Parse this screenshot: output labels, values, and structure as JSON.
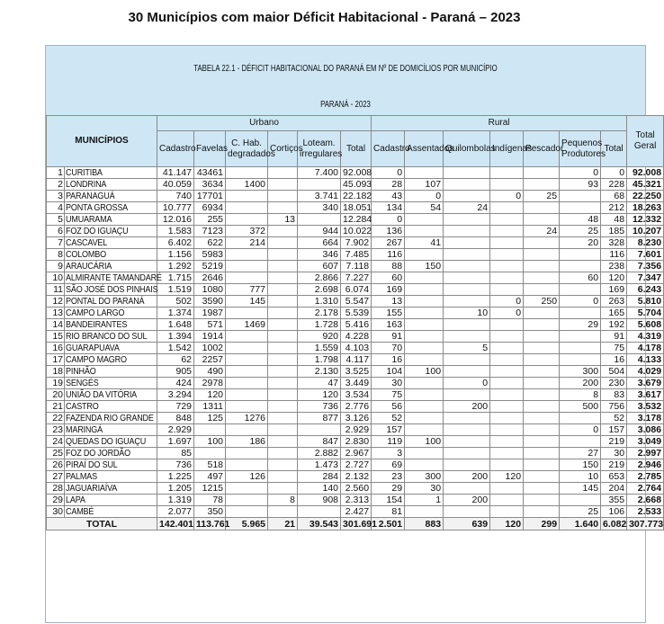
{
  "title": "30 Municípios com maior Déficit Habitacional - Paraná – 2023",
  "table": {
    "caption": "TABELA 22.1 - DÉFICIT HABITACIONAL DO PARANÁ EM Nº DE DOMICÍLIOS POR MUNICÍPIO",
    "subcaption": "PARANÁ - 2023",
    "group_headers": {
      "municipios": "MUNICÍPIOS",
      "urbano": "Urbano",
      "rural": "Rural",
      "total_geral": "Total Geral"
    },
    "columns": [
      "Cadastro",
      "Favelas",
      "C. Hab. degradados",
      "Cortiços",
      "Loteam. irregulares",
      "Total",
      "Cadastro",
      "Assentados",
      "Quilombolas",
      "Indígenas",
      "Pescador",
      "Pequenos Produtores",
      "Total"
    ],
    "rows": [
      [
        "1",
        "CURITIBA",
        "41.147",
        "43461",
        "",
        "",
        "7.400",
        "92.008",
        "0",
        "",
        "",
        "",
        "",
        "0",
        "0",
        "92.008"
      ],
      [
        "2",
        "LONDRINA",
        "40.059",
        "3634",
        "1400",
        "",
        "",
        "45.093",
        "28",
        "107",
        "",
        "",
        "",
        "93",
        "228",
        "45.321"
      ],
      [
        "3",
        "PARANAGUÁ",
        "740",
        "17701",
        "",
        "",
        "3.741",
        "22.182",
        "43",
        "0",
        "",
        "0",
        "25",
        "",
        "68",
        "22.250"
      ],
      [
        "4",
        "PONTA GROSSA",
        "10.777",
        "6934",
        "",
        "",
        "340",
        "18.051",
        "134",
        "54",
        "24",
        "",
        "",
        "",
        "212",
        "18.263"
      ],
      [
        "5",
        "UMUARAMA",
        "12.016",
        "255",
        "",
        "13",
        "",
        "12.284",
        "0",
        "",
        "",
        "",
        "",
        "48",
        "48",
        "12.332"
      ],
      [
        "6",
        "FOZ DO IGUAÇU",
        "1.583",
        "7123",
        "372",
        "",
        "944",
        "10.022",
        "136",
        "",
        "",
        "",
        "24",
        "25",
        "185",
        "10.207"
      ],
      [
        "7",
        "CASCAVEL",
        "6.402",
        "622",
        "214",
        "",
        "664",
        "7.902",
        "267",
        "41",
        "",
        "",
        "",
        "20",
        "328",
        "8.230"
      ],
      [
        "8",
        "COLOMBO",
        "1.156",
        "5983",
        "",
        "",
        "346",
        "7.485",
        "116",
        "",
        "",
        "",
        "",
        "",
        "116",
        "7.601"
      ],
      [
        "9",
        "ARAUCÁRIA",
        "1.292",
        "5219",
        "",
        "",
        "607",
        "7.118",
        "88",
        "150",
        "",
        "",
        "",
        "",
        "238",
        "7.356"
      ],
      [
        "10",
        "ALMIRANTE TAMANDARÉ",
        "1.715",
        "2646",
        "",
        "",
        "2.866",
        "7.227",
        "60",
        "",
        "",
        "",
        "",
        "60",
        "120",
        "7.347"
      ],
      [
        "11",
        "SÃO JOSÉ DOS PINHAIS",
        "1.519",
        "1080",
        "777",
        "",
        "2.698",
        "6.074",
        "169",
        "",
        "",
        "",
        "",
        "",
        "169",
        "6.243"
      ],
      [
        "12",
        "PONTAL DO PARANÁ",
        "502",
        "3590",
        "145",
        "",
        "1.310",
        "5.547",
        "13",
        "",
        "",
        "0",
        "250",
        "0",
        "263",
        "5.810"
      ],
      [
        "13",
        "CAMPO LARGO",
        "1.374",
        "1987",
        "",
        "",
        "2.178",
        "5.539",
        "155",
        "",
        "10",
        "0",
        "",
        "",
        "165",
        "5.704"
      ],
      [
        "14",
        "BANDEIRANTES",
        "1.648",
        "571",
        "1469",
        "",
        "1.728",
        "5.416",
        "163",
        "",
        "",
        "",
        "",
        "29",
        "192",
        "5.608"
      ],
      [
        "15",
        "RIO BRANCO DO SUL",
        "1.394",
        "1914",
        "",
        "",
        "920",
        "4.228",
        "91",
        "",
        "",
        "",
        "",
        "",
        "91",
        "4.319"
      ],
      [
        "16",
        "GUARAPUAVA",
        "1.542",
        "1002",
        "",
        "",
        "1.559",
        "4.103",
        "70",
        "",
        "5",
        "",
        "",
        "",
        "75",
        "4.178"
      ],
      [
        "17",
        "CAMPO MAGRO",
        "62",
        "2257",
        "",
        "",
        "1.798",
        "4.117",
        "16",
        "",
        "",
        "",
        "",
        "",
        "16",
        "4.133"
      ],
      [
        "18",
        "PINHÃO",
        "905",
        "490",
        "",
        "",
        "2.130",
        "3.525",
        "104",
        "100",
        "",
        "",
        "",
        "300",
        "504",
        "4.029"
      ],
      [
        "19",
        "SENGÉS",
        "424",
        "2978",
        "",
        "",
        "47",
        "3.449",
        "30",
        "",
        "0",
        "",
        "",
        "200",
        "230",
        "3.679"
      ],
      [
        "20",
        "UNIÃO DA VITÓRIA",
        "3.294",
        "120",
        "",
        "",
        "120",
        "3.534",
        "75",
        "",
        "",
        "",
        "",
        "8",
        "83",
        "3.617"
      ],
      [
        "21",
        "CASTRO",
        "729",
        "1311",
        "",
        "",
        "736",
        "2.776",
        "56",
        "",
        "200",
        "",
        "",
        "500",
        "756",
        "3.532"
      ],
      [
        "22",
        "FAZENDA RIO GRANDE",
        "848",
        "125",
        "1276",
        "",
        "877",
        "3.126",
        "52",
        "",
        "",
        "",
        "",
        "",
        "52",
        "3.178"
      ],
      [
        "23",
        "MARINGÁ",
        "2.929",
        "",
        "",
        "",
        "",
        "2.929",
        "157",
        "",
        "",
        "",
        "",
        "0",
        "157",
        "3.086"
      ],
      [
        "24",
        "QUEDAS DO IGUAÇU",
        "1.697",
        "100",
        "186",
        "",
        "847",
        "2.830",
        "119",
        "100",
        "",
        "",
        "",
        "",
        "219",
        "3.049"
      ],
      [
        "25",
        "FOZ DO JORDÃO",
        "85",
        "",
        "",
        "",
        "2.882",
        "2.967",
        "3",
        "",
        "",
        "",
        "",
        "27",
        "30",
        "2.997"
      ],
      [
        "26",
        "PIRAÍ DO SUL",
        "736",
        "518",
        "",
        "",
        "1.473",
        "2.727",
        "69",
        "",
        "",
        "",
        "",
        "150",
        "219",
        "2.946"
      ],
      [
        "27",
        "PALMAS",
        "1.225",
        "497",
        "126",
        "",
        "284",
        "2.132",
        "23",
        "300",
        "200",
        "120",
        "",
        "10",
        "653",
        "2.785"
      ],
      [
        "28",
        "JAGUARIAÍVA",
        "1.205",
        "1215",
        "",
        "",
        "140",
        "2.560",
        "29",
        "30",
        "",
        "",
        "",
        "145",
        "204",
        "2.764"
      ],
      [
        "29",
        "LAPA",
        "1.319",
        "78",
        "",
        "8",
        "908",
        "2.313",
        "154",
        "1",
        "200",
        "",
        "",
        "",
        "355",
        "2.668"
      ],
      [
        "30",
        "CAMBÉ",
        "2.077",
        "350",
        "",
        "",
        "",
        "2.427",
        "81",
        "",
        "",
        "",
        "",
        "25",
        "106",
        "2.533"
      ]
    ],
    "total_row": [
      "TOTAL",
      "142.401",
      "113.761",
      "5.965",
      "21",
      "39.543",
      "301.691",
      "2.501",
      "883",
      "639",
      "120",
      "299",
      "1.640",
      "6.082",
      "307.773"
    ]
  }
}
